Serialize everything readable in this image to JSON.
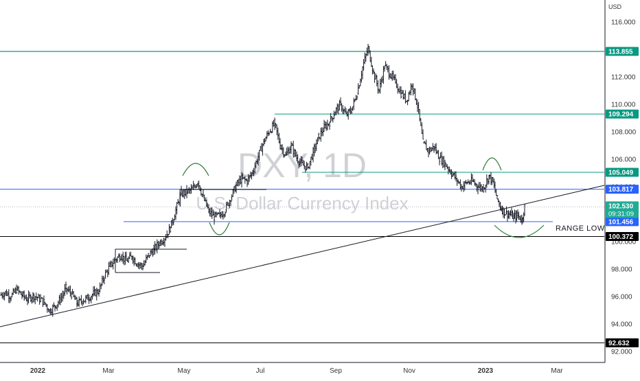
{
  "chart_data": {
    "type": "candlestick",
    "watermark": {
      "symbol": "DXY, 1D",
      "name": "U.S. Dollar Currency Index"
    },
    "currency_label": "USD",
    "ylim": [
      91.2,
      117.6
    ],
    "y_ticks": [
      "92.000",
      "94.000",
      "96.000",
      "98.000",
      "100.000",
      "102.000",
      "104.000",
      "106.000",
      "108.000",
      "110.000",
      "112.000",
      "114.000",
      "116.000"
    ],
    "x_range": [
      0,
      880
    ],
    "x_ticks": [
      {
        "label": "2022",
        "x": 55,
        "bold": true
      },
      {
        "label": "Mar",
        "x": 158,
        "bold": false
      },
      {
        "label": "May",
        "x": 268,
        "bold": false
      },
      {
        "label": "Jul",
        "x": 379,
        "bold": false
      },
      {
        "label": "Sep",
        "x": 489,
        "bold": false
      },
      {
        "label": "Nov",
        "x": 596,
        "bold": false
      },
      {
        "label": "2023",
        "x": 707,
        "bold": true
      },
      {
        "label": "Mar",
        "x": 811,
        "bold": false
      }
    ],
    "levels": [
      {
        "value": 113.855,
        "label": "113.855",
        "color": "#089981",
        "x0": 0,
        "x1": 880,
        "weight": 1.3
      },
      {
        "value": 109.294,
        "label": "109.294",
        "color": "#089981",
        "x0": 400,
        "x1": 880,
        "weight": 1.0
      },
      {
        "value": 105.049,
        "label": "105.049",
        "color": "#089981",
        "x0": 440,
        "x1": 880,
        "weight": 1.0
      },
      {
        "value": 103.817,
        "label": "103.817",
        "color": "#2962ff",
        "x0": 0,
        "x1": 880,
        "weight": 1.0
      },
      {
        "value": 101.456,
        "label": "101.456",
        "color": "#2962ff",
        "x0": 180,
        "x1": 805,
        "weight": 1.0
      },
      {
        "value": 100.372,
        "label": "100.372",
        "color": "#000000",
        "x0": 0,
        "x1": 880,
        "weight": 1.0
      },
      {
        "value": 92.632,
        "label": "92.632",
        "color": "#000000",
        "x0": 0,
        "x1": 880,
        "weight": 1.0
      }
    ],
    "current_price": {
      "value": 102.53,
      "label": "102.530",
      "countdown": "09:31:09",
      "color": "#22ab94"
    },
    "range_label": "RANGE LOW",
    "trendline": {
      "x0": 0,
      "y0": 93.8,
      "x1": 880,
      "y1": 104.1
    },
    "boxes": [
      {
        "x0": 168,
        "x1": 272,
        "y": 99.45
      },
      {
        "x0": 168,
        "x1": 233,
        "y": 97.75
      },
      {
        "x0": 262,
        "x1": 388,
        "y": 103.8
      }
    ],
    "arcs": [
      {
        "x0": 266,
        "x1": 304,
        "y": 104.8,
        "dir": "up"
      },
      {
        "x0": 305,
        "x1": 334,
        "y": 101.4,
        "dir": "down"
      },
      {
        "x0": 703,
        "x1": 730,
        "y": 105.2,
        "dir": "up"
      },
      {
        "x0": 720,
        "x1": 792,
        "y": 101.2,
        "dir": "down"
      }
    ],
    "series": [
      {
        "x": 0,
        "c": 96.1
      },
      {
        "x": 8,
        "c": 96.3
      },
      {
        "x": 16,
        "c": 96.0
      },
      {
        "x": 24,
        "c": 96.5
      },
      {
        "x": 32,
        "c": 96.1
      },
      {
        "x": 40,
        "c": 95.8
      },
      {
        "x": 48,
        "c": 96.1
      },
      {
        "x": 56,
        "c": 95.9
      },
      {
        "x": 64,
        "c": 95.6
      },
      {
        "x": 72,
        "c": 95.0
      },
      {
        "x": 80,
        "c": 95.3
      },
      {
        "x": 88,
        "c": 95.8
      },
      {
        "x": 96,
        "c": 96.6
      },
      {
        "x": 104,
        "c": 96.2
      },
      {
        "x": 112,
        "c": 95.5
      },
      {
        "x": 120,
        "c": 95.7
      },
      {
        "x": 128,
        "c": 95.9
      },
      {
        "x": 136,
        "c": 96.2
      },
      {
        "x": 144,
        "c": 96.4
      },
      {
        "x": 152,
        "c": 97.5
      },
      {
        "x": 160,
        "c": 98.2
      },
      {
        "x": 168,
        "c": 98.7
      },
      {
        "x": 176,
        "c": 99.0
      },
      {
        "x": 184,
        "c": 98.6
      },
      {
        "x": 192,
        "c": 98.9
      },
      {
        "x": 200,
        "c": 98.4
      },
      {
        "x": 208,
        "c": 98.2
      },
      {
        "x": 216,
        "c": 99.0
      },
      {
        "x": 224,
        "c": 99.4
      },
      {
        "x": 232,
        "c": 99.9
      },
      {
        "x": 240,
        "c": 100.3
      },
      {
        "x": 248,
        "c": 101.0
      },
      {
        "x": 256,
        "c": 102.3
      },
      {
        "x": 264,
        "c": 103.5
      },
      {
        "x": 272,
        "c": 103.6
      },
      {
        "x": 280,
        "c": 103.8
      },
      {
        "x": 288,
        "c": 104.4
      },
      {
        "x": 296,
        "c": 103.2
      },
      {
        "x": 304,
        "c": 102.2
      },
      {
        "x": 312,
        "c": 101.8
      },
      {
        "x": 320,
        "c": 101.9
      },
      {
        "x": 328,
        "c": 102.3
      },
      {
        "x": 336,
        "c": 103.2
      },
      {
        "x": 344,
        "c": 104.1
      },
      {
        "x": 352,
        "c": 104.6
      },
      {
        "x": 360,
        "c": 104.4
      },
      {
        "x": 368,
        "c": 105.1
      },
      {
        "x": 376,
        "c": 106.2
      },
      {
        "x": 384,
        "c": 107.3
      },
      {
        "x": 392,
        "c": 108.0
      },
      {
        "x": 400,
        "c": 108.6
      },
      {
        "x": 408,
        "c": 107.0
      },
      {
        "x": 416,
        "c": 106.3
      },
      {
        "x": 424,
        "c": 107.0
      },
      {
        "x": 432,
        "c": 106.1
      },
      {
        "x": 440,
        "c": 105.6
      },
      {
        "x": 448,
        "c": 105.4
      },
      {
        "x": 456,
        "c": 106.5
      },
      {
        "x": 464,
        "c": 107.6
      },
      {
        "x": 472,
        "c": 108.3
      },
      {
        "x": 480,
        "c": 108.7
      },
      {
        "x": 488,
        "c": 109.5
      },
      {
        "x": 496,
        "c": 110.0
      },
      {
        "x": 504,
        "c": 109.2
      },
      {
        "x": 512,
        "c": 109.6
      },
      {
        "x": 520,
        "c": 110.8
      },
      {
        "x": 528,
        "c": 112.7
      },
      {
        "x": 536,
        "c": 114.1
      },
      {
        "x": 544,
        "c": 112.3
      },
      {
        "x": 552,
        "c": 111.0
      },
      {
        "x": 560,
        "c": 112.8
      },
      {
        "x": 568,
        "c": 112.2
      },
      {
        "x": 576,
        "c": 111.6
      },
      {
        "x": 584,
        "c": 110.8
      },
      {
        "x": 592,
        "c": 110.3
      },
      {
        "x": 600,
        "c": 111.5
      },
      {
        "x": 608,
        "c": 109.9
      },
      {
        "x": 616,
        "c": 107.2
      },
      {
        "x": 624,
        "c": 106.6
      },
      {
        "x": 632,
        "c": 106.9
      },
      {
        "x": 640,
        "c": 106.1
      },
      {
        "x": 648,
        "c": 105.7
      },
      {
        "x": 656,
        "c": 105.1
      },
      {
        "x": 664,
        "c": 104.6
      },
      {
        "x": 672,
        "c": 104.0
      },
      {
        "x": 680,
        "c": 104.3
      },
      {
        "x": 688,
        "c": 104.4
      },
      {
        "x": 696,
        "c": 104.0
      },
      {
        "x": 704,
        "c": 103.9
      },
      {
        "x": 712,
        "c": 104.8
      },
      {
        "x": 718,
        "c": 104.3
      },
      {
        "x": 724,
        "c": 103.1
      },
      {
        "x": 730,
        "c": 102.4
      },
      {
        "x": 736,
        "c": 102.1
      },
      {
        "x": 742,
        "c": 102.0
      },
      {
        "x": 748,
        "c": 101.8
      },
      {
        "x": 754,
        "c": 101.9
      },
      {
        "x": 760,
        "c": 101.6
      },
      {
        "x": 764,
        "c": 102.53
      }
    ]
  }
}
